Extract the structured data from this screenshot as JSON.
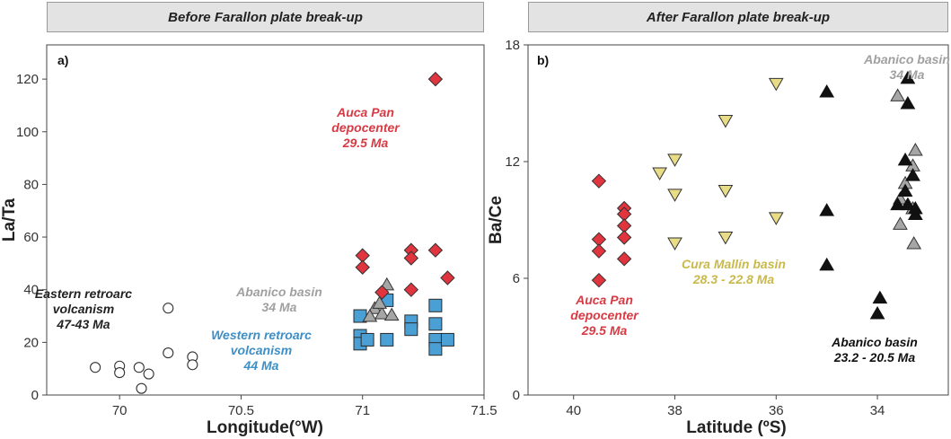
{
  "chart_data": [
    {
      "type": "scatter",
      "panel_label": "a)",
      "title": "Before Farallon plate break-up",
      "xlabel": "Longitude(°W)",
      "ylabel": "La/Ta",
      "xlim": [
        69.7,
        71.5
      ],
      "ylim": [
        0,
        133
      ],
      "xticks": [
        "70",
        "70.5",
        "71",
        "71.5"
      ],
      "yticks": [
        "0",
        "20",
        "40",
        "60",
        "80",
        "100",
        "120"
      ],
      "grid": false,
      "series": [
        {
          "name": "Eastern retroarc volcanism 47-43 Ma",
          "marker": "circle",
          "color": "#ffffff",
          "stroke": "#333333",
          "points": [
            [
              70.2,
              33
            ],
            [
              69.9,
              10.5
            ],
            [
              70.0,
              11
            ],
            [
              70.0,
              8.5
            ],
            [
              70.08,
              10.5
            ],
            [
              70.12,
              8
            ],
            [
              70.2,
              16
            ],
            [
              70.3,
              14.5
            ],
            [
              70.3,
              11.5
            ],
            [
              70.09,
              2.5
            ]
          ]
        },
        {
          "name": "Western retroarc volcanism 44 Ma",
          "marker": "square",
          "color": "#4aa0d5",
          "stroke": "#2a2a2a",
          "points": [
            [
              70.99,
              30
            ],
            [
              70.99,
              22.5
            ],
            [
              70.99,
              19.5
            ],
            [
              71.02,
              21
            ],
            [
              71.1,
              36
            ],
            [
              71.1,
              21
            ],
            [
              71.2,
              28
            ],
            [
              71.2,
              25
            ],
            [
              71.3,
              34
            ],
            [
              71.3,
              27
            ],
            [
              71.3,
              21
            ],
            [
              71.3,
              17.5
            ],
            [
              71.35,
              21
            ]
          ]
        },
        {
          "name": "Abanico basin 34 Ma",
          "marker": "triangle-up",
          "color": "#a6a6a6",
          "stroke": "#333333",
          "points": [
            [
              71.1,
              42
            ],
            [
              71.05,
              33
            ],
            [
              71.08,
              31
            ],
            [
              71.03,
              30
            ],
            [
              71.12,
              30.5
            ],
            [
              71.07,
              35
            ]
          ]
        },
        {
          "name": "Auca Pan depocenter 29.5 Ma",
          "marker": "diamond",
          "color": "#e0343e",
          "stroke": "#333333",
          "points": [
            [
              71.3,
              120
            ],
            [
              71.0,
              53
            ],
            [
              71.0,
              48.5
            ],
            [
              71.2,
              55
            ],
            [
              71.2,
              52
            ],
            [
              71.3,
              55
            ],
            [
              71.35,
              44.5
            ],
            [
              71.2,
              40
            ],
            [
              71.08,
              39
            ]
          ]
        }
      ],
      "annotations": [
        {
          "lines": [
            "Auca Pan",
            "depocenter",
            "29.5 Ma"
          ],
          "color": "#d83a44"
        },
        {
          "lines": [
            "Eastern retroarc",
            "volcanism",
            "47-43 Ma"
          ],
          "color": "#222222"
        },
        {
          "lines": [
            "Abanico basin",
            "34 Ma"
          ],
          "color": "#a0a0a0"
        },
        {
          "lines": [
            "Western retroarc",
            "volcanism",
            "44 Ma"
          ],
          "color": "#3d8fc6"
        }
      ]
    },
    {
      "type": "scatter",
      "panel_label": "b)",
      "title": "After Farallon plate break-up",
      "xlabel": "Latitude (ºS)",
      "ylabel": "Ba/Ce",
      "xlim": [
        40.9,
        32.6
      ],
      "ylim": [
        0,
        18
      ],
      "xticks": [
        "40",
        "38",
        "36",
        "34"
      ],
      "yticks": [
        "0",
        "6",
        "12",
        "18"
      ],
      "grid": false,
      "series": [
        {
          "name": "Auca Pan depocenter 29.5 Ma",
          "marker": "diamond",
          "color": "#e0343e",
          "stroke": "#333333",
          "points": [
            [
              39.5,
              11
            ],
            [
              39.5,
              8
            ],
            [
              39.5,
              7.4
            ],
            [
              39.5,
              5.9
            ],
            [
              39.0,
              9.6
            ],
            [
              39.0,
              9.3
            ],
            [
              39.0,
              8.7
            ],
            [
              39.0,
              8.1
            ],
            [
              39.0,
              7.0
            ]
          ]
        },
        {
          "name": "Cura Mallín basin 28.3 - 22.8 Ma",
          "marker": "triangle-down",
          "color": "#e9dc86",
          "stroke": "#333333",
          "points": [
            [
              38.3,
              11.4
            ],
            [
              38.0,
              12.1
            ],
            [
              38.0,
              10.3
            ],
            [
              38.0,
              7.8
            ],
            [
              37.0,
              14.1
            ],
            [
              37.0,
              10.5
            ],
            [
              37.0,
              8.1
            ],
            [
              36.0,
              16.0
            ],
            [
              36.0,
              9.1
            ]
          ]
        },
        {
          "name": "Abanico basin 34 Ma",
          "marker": "triangle-up",
          "color": "#a6a6a6",
          "stroke": "#333333",
          "points": [
            [
              33.6,
              15.4
            ],
            [
              33.25,
              12.6
            ],
            [
              33.3,
              11.8
            ],
            [
              33.45,
              10.9
            ],
            [
              33.55,
              10.1
            ],
            [
              33.3,
              9.6
            ],
            [
              33.55,
              8.8
            ],
            [
              33.28,
              7.8
            ]
          ]
        },
        {
          "name": "Abanico basin 23.2 - 20.5 Ma",
          "marker": "triangle-up",
          "color": "#111111",
          "stroke": "#111111",
          "points": [
            [
              35.0,
              15.6
            ],
            [
              33.4,
              16.3
            ],
            [
              33.4,
              15.0
            ],
            [
              33.45,
              12.1
            ],
            [
              33.3,
              11.3
            ],
            [
              33.45,
              10.5
            ],
            [
              33.6,
              9.8
            ],
            [
              33.4,
              9.8
            ],
            [
              33.25,
              9.6
            ],
            [
              33.25,
              9.3
            ],
            [
              35.0,
              9.5
            ],
            [
              35.0,
              6.7
            ],
            [
              33.95,
              5.0
            ],
            [
              34.0,
              4.2
            ]
          ]
        }
      ],
      "annotations": [
        {
          "lines": [
            "Abanico basin",
            "34 Ma"
          ],
          "color": "#a0a0a0"
        },
        {
          "lines": [
            "Cura Mallín basin",
            "28.3 - 22.8 Ma"
          ],
          "color": "#c9b94a"
        },
        {
          "lines": [
            "Auca Pan",
            "depocenter",
            "29.5 Ma"
          ],
          "color": "#d83a44"
        },
        {
          "lines": [
            "Abanico basin",
            "23.2 - 20.5 Ma"
          ],
          "color": "#111111"
        }
      ]
    }
  ]
}
